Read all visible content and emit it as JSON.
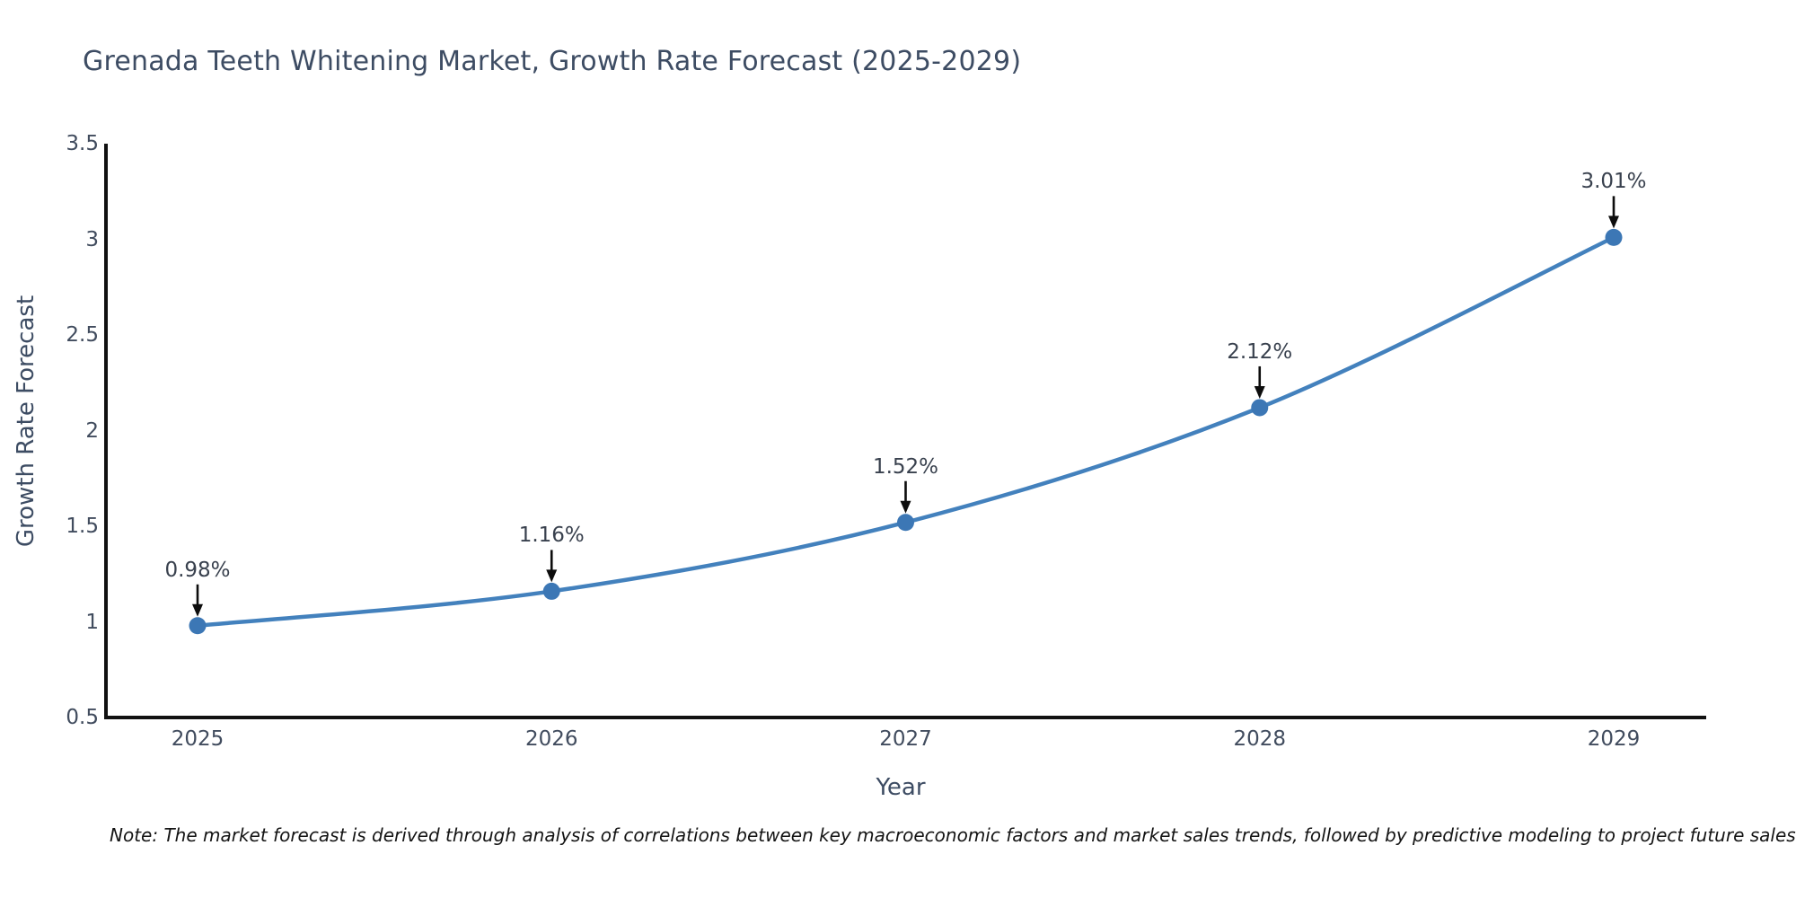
{
  "title": "Grenada Teeth Whitening Market, Growth Rate Forecast (2025-2029)",
  "note": "Note: The market forecast is derived through analysis of correlations between key macroeconomic factors and market sales trends, followed by predictive modeling to project future sales",
  "chart_data": {
    "type": "line",
    "title": "Grenada Teeth Whitening Market, Growth Rate Forecast (2025-2029)",
    "xlabel": "Year",
    "ylabel": "Growth Rate Forecast",
    "x": [
      2025,
      2026,
      2027,
      2028,
      2029
    ],
    "series": [
      {
        "name": "Growth Rate Forecast",
        "values": [
          0.98,
          1.16,
          1.52,
          2.12,
          3.01
        ]
      }
    ],
    "point_labels": [
      "0.98%",
      "1.16%",
      "1.52%",
      "2.12%",
      "3.01%"
    ],
    "xtick_labels": [
      "2025",
      "2026",
      "2027",
      "2028",
      "2029"
    ],
    "yticks": [
      0.5,
      1,
      1.5,
      2,
      2.5,
      3,
      3.5
    ],
    "ytick_labels": [
      "0.5",
      "1",
      "1.5",
      "2",
      "2.5",
      "3",
      "3.5"
    ],
    "ylim": [
      0.5,
      3.5
    ],
    "grid": false,
    "legend_position": "none",
    "line_style": "smooth",
    "annotation_arrows": "black-down-arrows",
    "colors": {
      "line": "#4381bd",
      "marker": "#3c77b5",
      "axis_spine": "#111111",
      "title_text": "#3d4c63",
      "tick_text": "#414c5e",
      "annotation_text": "#39414e",
      "note_text": "#141414",
      "background": "#ffffff",
      "arrow": "#0d0d0d"
    }
  }
}
